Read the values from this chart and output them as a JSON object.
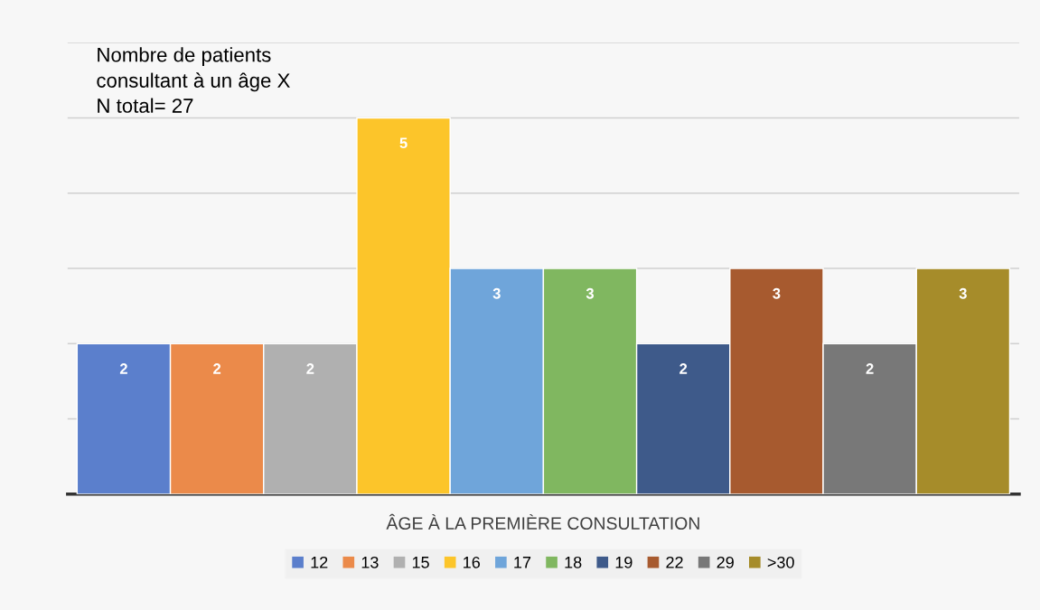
{
  "chart_data": {
    "type": "bar",
    "title": "Nombre de patients\nconsultant à un âge X\nN total= 27",
    "xlabel": "ÂGE À LA PREMIÈRE CONSULTATION",
    "categories": [
      null
    ],
    "series": [
      {
        "name": "12",
        "color": "#5b7fcc",
        "values": [
          2
        ]
      },
      {
        "name": "13",
        "color": "#eb8a4a",
        "values": [
          2
        ]
      },
      {
        "name": "15",
        "color": "#b0b0b0",
        "values": [
          2
        ]
      },
      {
        "name": "16",
        "color": "#fcc52a",
        "values": [
          5
        ]
      },
      {
        "name": "17",
        "color": "#6fa5da",
        "values": [
          3
        ]
      },
      {
        "name": "18",
        "color": "#80b760",
        "values": [
          3
        ]
      },
      {
        "name": "19",
        "color": "#3e5a8a",
        "values": [
          2
        ]
      },
      {
        "name": "22",
        "color": "#a75a2f",
        "values": [
          3
        ]
      },
      {
        "name": "29",
        "color": "#787878",
        "values": [
          2
        ]
      },
      {
        "name": ">30",
        "color": "#a68c2a",
        "values": [
          3
        ]
      }
    ],
    "ylim": [
      0,
      6
    ],
    "yticks": [
      {
        "value": 0,
        "label": null
      },
      {
        "value": 1,
        "label": null
      },
      {
        "value": 2,
        "label": null
      },
      {
        "value": 3,
        "label": null
      },
      {
        "value": 4,
        "label": null
      },
      {
        "value": 5,
        "label": null
      },
      {
        "value": 6,
        "label": null
      }
    ],
    "grid": "y",
    "legend": "bottom",
    "tick_labels": false,
    "data_labels": true
  }
}
